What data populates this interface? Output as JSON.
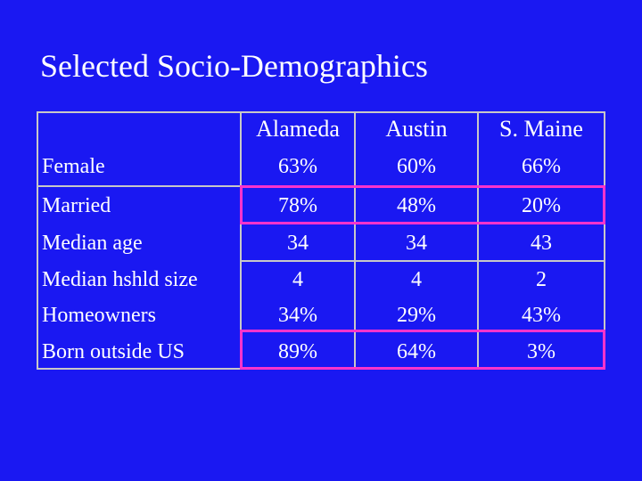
{
  "title": "Selected Socio-Demographics",
  "table": {
    "columns": [
      "Alameda",
      "Austin",
      "S. Maine"
    ],
    "rows": [
      {
        "label": "Female",
        "values": [
          "63%",
          "60%",
          "66%"
        ]
      },
      {
        "label": "Married",
        "values": [
          "78%",
          "48%",
          "20%"
        ]
      },
      {
        "label": "Median age",
        "values": [
          "34",
          "34",
          "43"
        ]
      },
      {
        "label": "Median hshld size",
        "values": [
          "4",
          "4",
          "2"
        ]
      },
      {
        "label": "Homeowners",
        "values": [
          "34%",
          "29%",
          "43%"
        ]
      },
      {
        "label": "Born outside US",
        "values": [
          "89%",
          "64%",
          "3%"
        ]
      }
    ],
    "highlighted_rows": [
      "Married",
      "Born outside US"
    ]
  },
  "colors": {
    "background": "#1a18f2",
    "text": "#ffffff",
    "border": "#c8c8c8",
    "highlight": "#ff33cc"
  }
}
